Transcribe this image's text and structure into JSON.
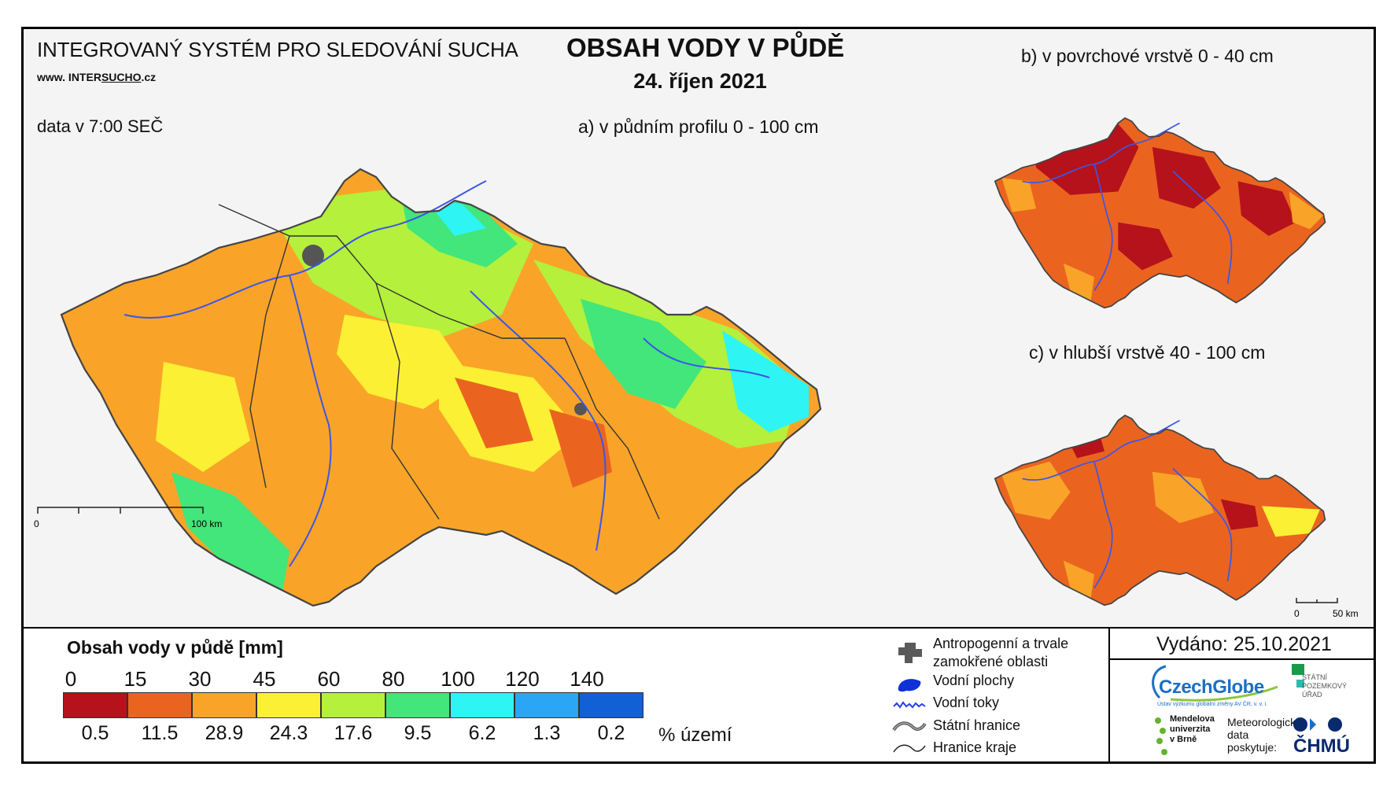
{
  "header": {
    "system_title": "INTEGROVANÝ SYSTÉM PRO SLEDOVÁNÍ SUCHA",
    "website_prefix": "www. INTER",
    "website_highlight": "SUCHO",
    "website_suffix": ".cz",
    "data_time": "data v 7:00 SEČ",
    "main_title": "OBSAH VODY V PŮDĚ",
    "main_date": "24. říjen 2021"
  },
  "maps": {
    "a": {
      "caption": "a) v půdním profilu 0 - 100 cm",
      "scale_start": "0",
      "scale_end": "100 km"
    },
    "b": {
      "caption": "b) v povrchové vrstvě 0 - 40 cm"
    },
    "c": {
      "caption": "c) v hlubší vrstvě 40 - 100 cm",
      "scale_start": "0",
      "scale_end": "50 km"
    }
  },
  "legend": {
    "title": "Obsah vody v půdě  [mm]",
    "ticks": [
      "0",
      "15",
      "30",
      "45",
      "60",
      "80",
      "100",
      "120",
      "140"
    ],
    "classes": [
      {
        "color": "#b5121b",
        "percent": "0.5"
      },
      {
        "color": "#ea6420",
        "percent": "11.5"
      },
      {
        "color": "#f9a428",
        "percent": "28.9"
      },
      {
        "color": "#fbf034",
        "percent": "24.3"
      },
      {
        "color": "#b4f03c",
        "percent": "17.6"
      },
      {
        "color": "#42e67a",
        "percent": "9.5"
      },
      {
        "color": "#2ef4f4",
        "percent": "6.2"
      },
      {
        "color": "#2aa6f4",
        "percent": "1.3"
      },
      {
        "color": "#1160d6",
        "percent": "0.2"
      }
    ],
    "percent_unit": "% území"
  },
  "symbols": {
    "anthropogenic_line1": "Antropogenní a trvale",
    "anthropogenic_line2": "zamokřené oblasti",
    "water_bodies": "Vodní plochy",
    "water_courses": "Vodní toky",
    "state_border": "Státní hranice",
    "region_border": "Hranice kraje"
  },
  "issued": "Vydáno: 25.10.2021",
  "logos": {
    "czechglobe": "CzechGlobe",
    "czechglobe_sub": "Ústav výzkumu globální změny AV ČR, v. v. i.",
    "spu_line1": "STÁTNÍ",
    "spu_line2": "POZEMKOVÝ",
    "spu_line3": "ÚŘAD",
    "mendel_line1": "Mendelova",
    "mendel_line2": "univerzita",
    "mendel_line3": "v Brně",
    "meteo_line1": "Meteorologická",
    "meteo_line2": "data",
    "meteo_line3": "poskytuje:",
    "chmu": "ČHMÚ"
  }
}
